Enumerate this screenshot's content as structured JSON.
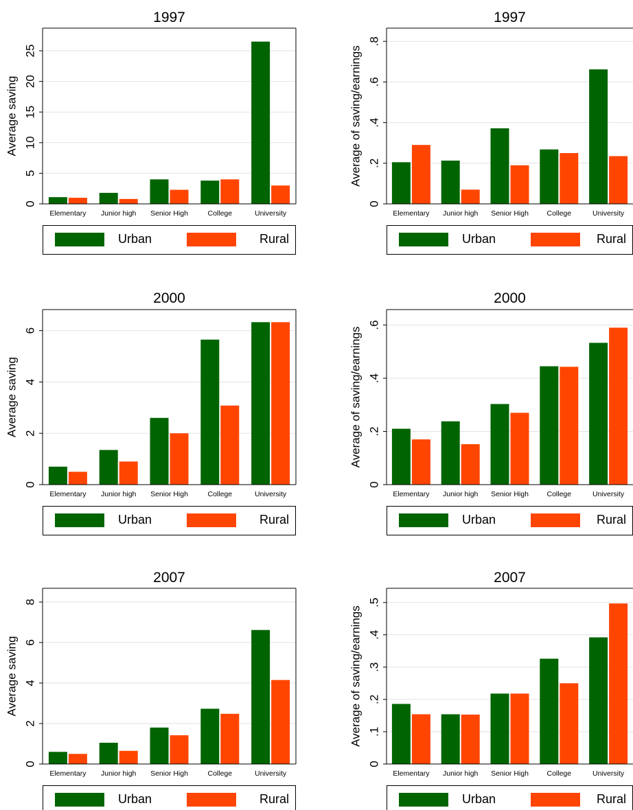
{
  "colors": {
    "urban": "#006400",
    "rural": "#ff4500",
    "grid": "#e2e2e2",
    "axis": "#000000",
    "frame": "#000000"
  },
  "chart_data": [
    {
      "type": "bar",
      "title": "1997",
      "ylabel": "Average saving",
      "categories": [
        "Elementary",
        "Junior high",
        "Senior High",
        "College",
        "University"
      ],
      "series": [
        {
          "name": "Urban",
          "values": [
            1.1,
            1.8,
            4.0,
            3.8,
            26.5
          ]
        },
        {
          "name": "Rural",
          "values": [
            1.0,
            0.8,
            2.3,
            4.0,
            3.0
          ]
        }
      ],
      "yticks": [
        0,
        5,
        10,
        15,
        20,
        25
      ],
      "ytick_labels": [
        "0",
        "5",
        "10",
        "15",
        "20",
        "25"
      ],
      "ylim": [
        0,
        28.7
      ],
      "grid": true,
      "legend_position": "bottom"
    },
    {
      "type": "bar",
      "title": "1997",
      "ylabel": "Average of saving/earnings",
      "categories": [
        "Elementary",
        "Junior high",
        "Senior High",
        "College",
        "University"
      ],
      "series": [
        {
          "name": "Urban",
          "values": [
            0.205,
            0.213,
            0.372,
            0.268,
            0.662
          ]
        },
        {
          "name": "Rural",
          "values": [
            0.29,
            0.07,
            0.19,
            0.25,
            0.235
          ]
        }
      ],
      "yticks": [
        0,
        0.2,
        0.4,
        0.6,
        0.8
      ],
      "ytick_labels": [
        "0",
        ".2",
        ".4",
        ".6",
        ".8"
      ],
      "ylim": [
        0,
        0.865
      ],
      "grid": true,
      "legend_position": "bottom"
    },
    {
      "type": "bar",
      "title": "2000",
      "ylabel": "Average saving",
      "categories": [
        "Elementary",
        "Junior high",
        "Senior High",
        "College",
        "University"
      ],
      "series": [
        {
          "name": "Urban",
          "values": [
            0.7,
            1.35,
            2.6,
            5.65,
            6.33
          ]
        },
        {
          "name": "Rural",
          "values": [
            0.5,
            0.9,
            2.0,
            3.08,
            6.33
          ]
        }
      ],
      "yticks": [
        0,
        2,
        4,
        6
      ],
      "ytick_labels": [
        "0",
        "2",
        "4",
        "6"
      ],
      "ylim": [
        0,
        6.82
      ],
      "grid": true,
      "legend_position": "bottom"
    },
    {
      "type": "bar",
      "title": "2000",
      "ylabel": "Average of saving/earnings",
      "categories": [
        "Elementary",
        "Junior high",
        "Senior High",
        "College",
        "University"
      ],
      "series": [
        {
          "name": "Urban",
          "values": [
            0.21,
            0.238,
            0.303,
            0.445,
            0.533
          ]
        },
        {
          "name": "Rural",
          "values": [
            0.17,
            0.152,
            0.27,
            0.443,
            0.59
          ]
        }
      ],
      "yticks": [
        0,
        0.2,
        0.4,
        0.6
      ],
      "ytick_labels": [
        "0",
        ".2",
        ".4",
        ".6"
      ],
      "ylim": [
        0,
        0.658
      ],
      "grid": true,
      "legend_position": "bottom"
    },
    {
      "type": "bar",
      "title": "2007",
      "ylabel": "Average saving",
      "categories": [
        "Elementary",
        "Junior high",
        "Senior High",
        "College",
        "University"
      ],
      "series": [
        {
          "name": "Urban",
          "values": [
            0.6,
            1.05,
            1.8,
            2.73,
            6.62
          ]
        },
        {
          "name": "Rural",
          "values": [
            0.5,
            0.65,
            1.42,
            2.48,
            4.15
          ]
        }
      ],
      "yticks": [
        0,
        2,
        4,
        6,
        8
      ],
      "ytick_labels": [
        "0",
        "2",
        "4",
        "6",
        "8"
      ],
      "ylim": [
        0,
        8.68
      ],
      "grid": true,
      "legend_position": "bottom"
    },
    {
      "type": "bar",
      "title": "2007",
      "ylabel": "Average of saving/earnings",
      "categories": [
        "Elementary",
        "Junior high",
        "Senior High",
        "College",
        "University"
      ],
      "series": [
        {
          "name": "Urban",
          "values": [
            0.186,
            0.154,
            0.218,
            0.326,
            0.392
          ]
        },
        {
          "name": "Rural",
          "values": [
            0.154,
            0.153,
            0.218,
            0.25,
            0.497
          ]
        }
      ],
      "yticks": [
        0,
        0.1,
        0.2,
        0.3,
        0.4,
        0.5
      ],
      "ytick_labels": [
        "0",
        ".1",
        ".2",
        ".3",
        ".4",
        ".5"
      ],
      "ylim": [
        0,
        0.544
      ],
      "grid": true,
      "legend_position": "bottom"
    }
  ]
}
